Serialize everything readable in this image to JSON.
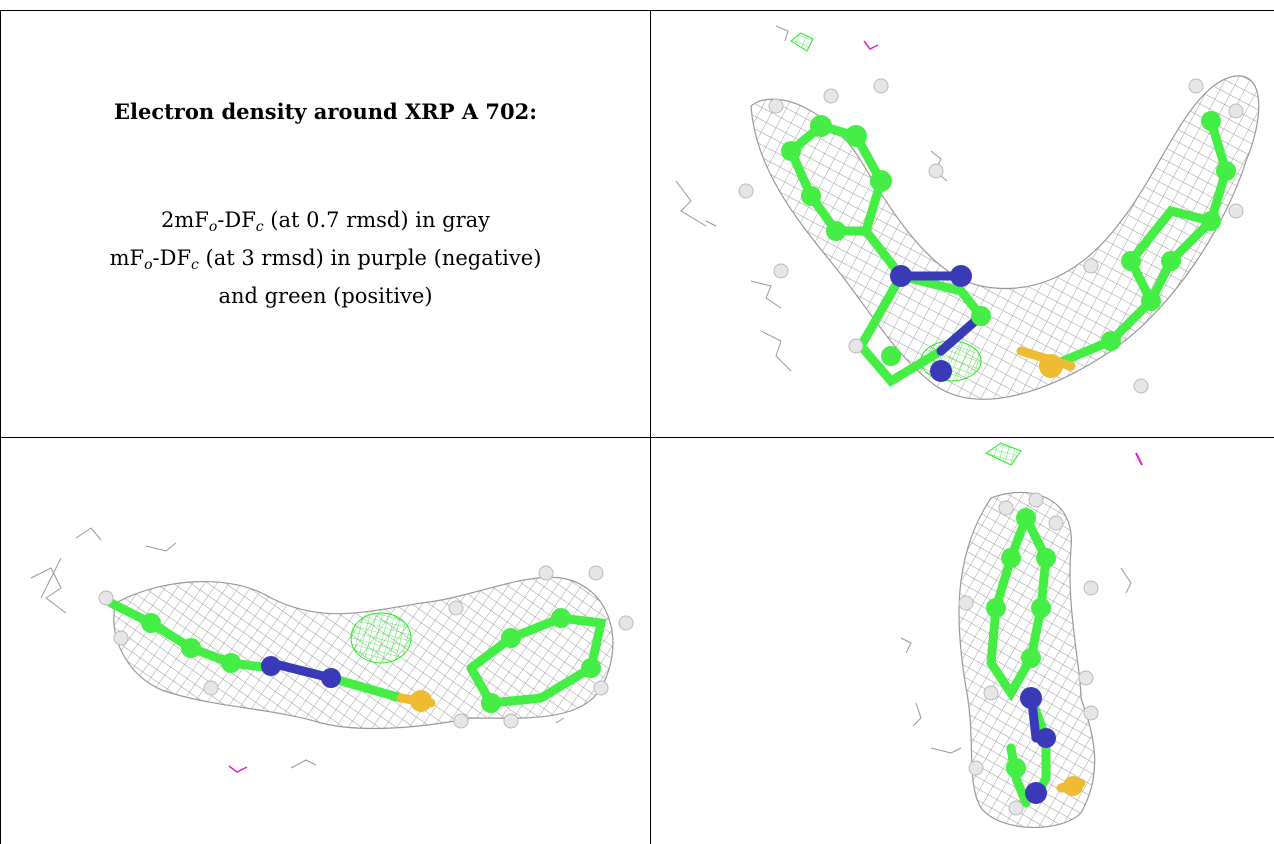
{
  "figure": {
    "heading": "Electron density around XRP A 702:",
    "legend": {
      "line1": {
        "pre": "2mF",
        "sub1": "o",
        "mid": "-DF",
        "sub2": "c",
        "post": " (at 0.7 rmsd) in gray"
      },
      "line2": {
        "pre": "mF",
        "sub1": "o",
        "mid": "-DF",
        "sub2": "c",
        "post": " (at 3 rmsd) in purple (negative)"
      },
      "line3": "and green (positive)"
    },
    "colors": {
      "mesh_2fofc": "#9a9a9a",
      "positive_density": "#22ee22",
      "negative_density": "#dd22cc",
      "carbon": "#44ee44",
      "nitrogen": "#3a3ab8",
      "sulfur": "#eebb33",
      "hydrogen": "#e6e6e6"
    },
    "panels": [
      "text-panel",
      "view-top-right",
      "view-bottom-left",
      "view-bottom-right"
    ]
  }
}
